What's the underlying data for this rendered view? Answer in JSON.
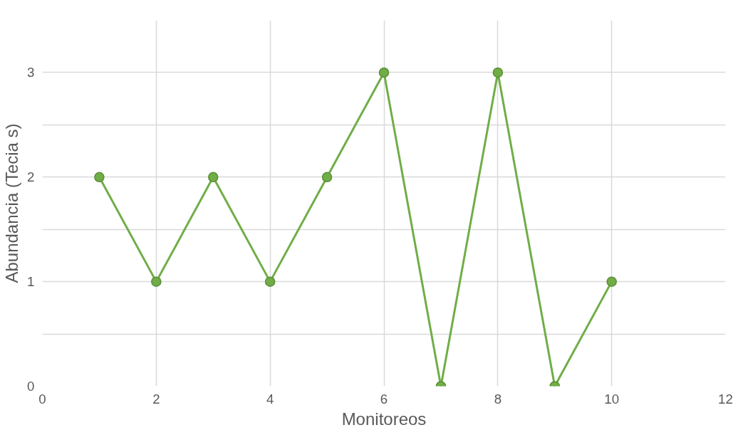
{
  "chart_data": {
    "type": "line",
    "xlabel": "Monitoreos",
    "ylabel": "Abundancia (Tecia s)",
    "x": [
      1,
      2,
      3,
      4,
      5,
      6,
      7,
      8,
      9,
      10
    ],
    "series": [
      {
        "color": "#70ad47",
        "values": [
          2,
          1,
          2,
          1,
          2,
          3,
          0,
          3,
          0,
          1
        ]
      }
    ],
    "xlim": [
      0,
      12
    ],
    "xticks": [
      0,
      2,
      4,
      6,
      8,
      10,
      12
    ],
    "ylim": [
      0,
      3.5
    ],
    "yticks": [
      0,
      {
        "value": 0.5,
        "label": null
      },
      1,
      {
        "value": 1.5,
        "label": null
      },
      2,
      {
        "value": 2.5,
        "label": null
      },
      3
    ],
    "grid": true,
    "marker": "circle",
    "line_style": "solid"
  }
}
